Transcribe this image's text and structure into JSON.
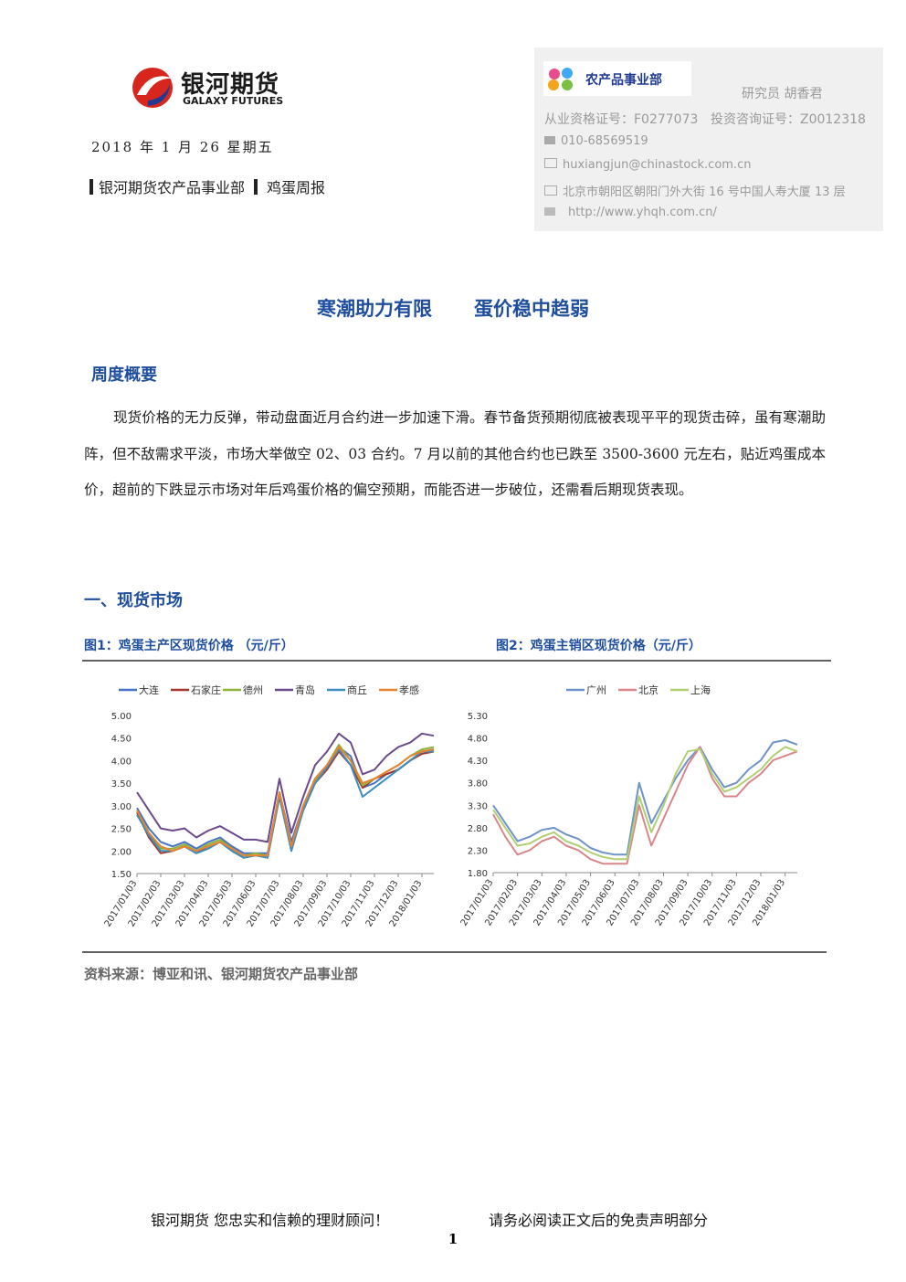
{
  "header": {
    "logo_cn": "银河期货",
    "logo_en": "GALAXY FUTURES",
    "date": "2018 年 1 月 26  星期五",
    "dept": "银河期货农产品事业部",
    "report": "鸡蛋周报"
  },
  "contact": {
    "badge": "农产品事业部",
    "analyst": "研究员   胡香君",
    "license": "从业资格证号：F0277073",
    "consult": "投资咨询证号：Z0012318",
    "phone": "010-68569519",
    "email": "huxiangjun@chinastock.com.cn",
    "address": "北京市朝阳区朝阳门外大街 16 号中国人寿大厦 13 层",
    "url": "http://www.yhqh.com.cn/"
  },
  "title": [
    "寒潮助力有限",
    "蛋价稳中趋弱"
  ],
  "summary": {
    "heading": "周度概要",
    "text": "现货价格的无力反弹，带动盘面近月合约进一步加速下滑。春节备货预期彻底被表现平平的现货击碎，虽有寒潮助阵，但不敌需求平淡，市场大举做空 02、03 合约。7 月以前的其他合约也已跌至 3500-3600 元左右，贴近鸡蛋成本价，超前的下跌显示市场对年后鸡蛋价格的偏空预期，而能否进一步破位，还需看后期现货表现。"
  },
  "section1": {
    "heading": "一、现货市场",
    "source": "资料来源：博亚和讯、银河期货农产品事业部"
  },
  "chart_data": [
    {
      "type": "line",
      "title": "图1：鸡蛋主产区现货价格 （元/斤）",
      "categories": [
        "2017/01/03",
        null,
        "2017/02/03",
        null,
        "2017/03/03",
        null,
        "2017/04/03",
        null,
        "2017/05/03",
        null,
        "2017/06/03",
        null,
        "2017/07/03",
        null,
        "2017/08/03",
        null,
        "2017/09/03",
        null,
        "2017/10/03",
        null,
        "2017/11/03",
        null,
        "2017/12/03",
        null,
        "2018/01/03",
        null
      ],
      "ylim": [
        1.5,
        5.0
      ],
      "yticks": [
        {
          "value": 1.5,
          "label": "1.50"
        },
        {
          "value": 2.0,
          "label": "2.00"
        },
        {
          "value": 2.5,
          "label": "2.50"
        },
        {
          "value": 3.0,
          "label": "3.00"
        },
        {
          "value": 3.5,
          "label": "3.50"
        },
        {
          "value": 4.0,
          "label": "4.00"
        },
        {
          "value": 4.5,
          "label": "4.50"
        },
        {
          "value": 5.0,
          "label": "5.00"
        }
      ],
      "grid": false,
      "series": [
        {
          "name": "大连",
          "color": "#4472c4",
          "values": [
            2.95,
            2.5,
            2.2,
            2.1,
            2.2,
            2.05,
            2.2,
            2.3,
            2.1,
            1.95,
            1.95,
            1.95,
            3.3,
            2.2,
            3.0,
            3.6,
            3.9,
            4.3,
            4.1,
            3.4,
            3.5,
            3.7,
            3.8,
            4.0,
            4.2,
            4.25
          ]
        },
        {
          "name": "石家庄",
          "color": "#a5362f",
          "values": [
            2.85,
            2.3,
            1.95,
            2.0,
            2.1,
            1.95,
            2.1,
            2.2,
            2.0,
            1.85,
            1.9,
            1.85,
            3.2,
            2.05,
            2.9,
            3.5,
            3.8,
            4.2,
            3.9,
            3.4,
            3.6,
            3.7,
            3.8,
            4.0,
            4.15,
            4.2
          ]
        },
        {
          "name": "德州",
          "color": "#8db33a",
          "values": [
            2.9,
            2.4,
            2.05,
            2.05,
            2.15,
            2.0,
            2.15,
            2.25,
            2.05,
            1.9,
            1.95,
            1.9,
            3.3,
            2.1,
            3.0,
            3.55,
            3.9,
            4.35,
            4.0,
            3.45,
            3.6,
            3.75,
            3.9,
            4.1,
            4.25,
            4.3
          ]
        },
        {
          "name": "青岛",
          "color": "#6a4a8c",
          "values": [
            3.3,
            2.9,
            2.5,
            2.45,
            2.5,
            2.3,
            2.45,
            2.55,
            2.4,
            2.25,
            2.25,
            2.2,
            3.6,
            2.4,
            3.2,
            3.9,
            4.2,
            4.6,
            4.4,
            3.7,
            3.8,
            4.1,
            4.3,
            4.4,
            4.6,
            4.55
          ]
        },
        {
          "name": "商丘",
          "color": "#3b8fbf",
          "values": [
            2.8,
            2.35,
            2.0,
            2.0,
            2.1,
            1.95,
            2.05,
            2.2,
            2.0,
            1.85,
            1.9,
            1.85,
            3.2,
            2.0,
            2.9,
            3.5,
            3.85,
            4.25,
            3.9,
            3.2,
            3.4,
            3.6,
            3.8,
            4.0,
            4.2,
            4.2
          ]
        },
        {
          "name": "孝感",
          "color": "#e8822f",
          "values": [
            2.9,
            2.4,
            2.1,
            2.0,
            2.1,
            2.0,
            2.1,
            2.2,
            2.05,
            1.9,
            1.9,
            1.9,
            3.3,
            2.1,
            3.0,
            3.6,
            3.9,
            4.3,
            4.0,
            3.5,
            3.6,
            3.75,
            3.9,
            4.1,
            4.2,
            4.25
          ]
        }
      ]
    },
    {
      "type": "line",
      "title": "图2：鸡蛋主销区现货价格（元/斤）",
      "categories": [
        "2017/01/03",
        null,
        "2017/02/03",
        null,
        "2017/03/03",
        null,
        "2017/04/03",
        null,
        "2017/05/03",
        null,
        "2017/06/03",
        null,
        "2017/07/03",
        null,
        "2017/08/03",
        null,
        "2017/09/03",
        null,
        "2017/10/03",
        null,
        "2017/11/03",
        null,
        "2017/12/03",
        null,
        "2018/01/03",
        null
      ],
      "ylim": [
        1.8,
        5.3
      ],
      "yticks": [
        {
          "value": 1.8,
          "label": "1.80"
        },
        {
          "value": 2.3,
          "label": "2.30"
        },
        {
          "value": 2.8,
          "label": "2.80"
        },
        {
          "value": 3.3,
          "label": "3.30"
        },
        {
          "value": 3.8,
          "label": "3.80"
        },
        {
          "value": 4.3,
          "label": "4.30"
        },
        {
          "value": 4.8,
          "label": "4.80"
        },
        {
          "value": 5.3,
          "label": "5.30"
        }
      ],
      "grid": false,
      "series": [
        {
          "name": "广州",
          "color": "#6d93c9",
          "values": [
            3.3,
            2.9,
            2.5,
            2.6,
            2.75,
            2.8,
            2.65,
            2.55,
            2.35,
            2.25,
            2.2,
            2.2,
            3.8,
            2.9,
            3.4,
            3.9,
            4.3,
            4.6,
            4.1,
            3.7,
            3.8,
            4.1,
            4.3,
            4.7,
            4.75,
            4.65
          ]
        },
        {
          "name": "北京",
          "color": "#d9868a",
          "values": [
            3.1,
            2.6,
            2.2,
            2.3,
            2.5,
            2.6,
            2.4,
            2.3,
            2.1,
            2.0,
            2.0,
            2.0,
            3.3,
            2.4,
            3.0,
            3.6,
            4.2,
            4.6,
            3.9,
            3.5,
            3.5,
            3.8,
            4.0,
            4.3,
            4.4,
            4.5
          ]
        },
        {
          "name": "上海",
          "color": "#b0cf73",
          "values": [
            3.2,
            2.8,
            2.4,
            2.45,
            2.6,
            2.7,
            2.5,
            2.4,
            2.25,
            2.15,
            2.1,
            2.1,
            3.5,
            2.7,
            3.3,
            4.0,
            4.5,
            4.55,
            4.0,
            3.6,
            3.7,
            3.9,
            4.1,
            4.4,
            4.6,
            4.5
          ]
        }
      ]
    }
  ],
  "footer": {
    "slogan": "银河期货  您忠实和信赖的理财顾问！",
    "disclaimer": "请务必阅读正文后的免责声明部分",
    "page": 1
  }
}
